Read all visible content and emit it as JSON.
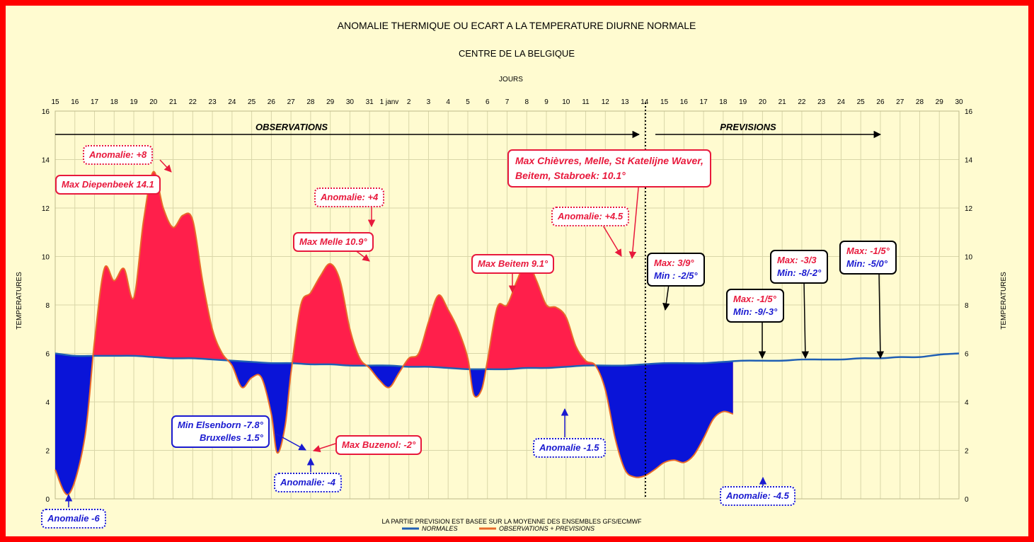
{
  "chart_data": {
    "type": "area",
    "title": "ANOMALIE THERMIQUE OU ECART A LA TEMPERATURE DIURNE NORMALE",
    "subtitle": "CENTRE DE LA BELGIQUE",
    "xlabel": "JOURS",
    "ylabel": "TEMPERATURES",
    "ylim": [
      0,
      16
    ],
    "yticks": [
      0,
      2,
      4,
      6,
      8,
      10,
      12,
      14,
      16
    ],
    "x_tick_labels": [
      "15",
      "16",
      "17",
      "18",
      "19",
      "20",
      "21",
      "22",
      "23",
      "24",
      "25",
      "26",
      "27",
      "28",
      "29",
      "30",
      "31",
      "1 janv",
      "2",
      "3",
      "4",
      "5",
      "6",
      "7",
      "8",
      "9",
      "10",
      "11",
      "12",
      "13",
      "14",
      "15",
      "16",
      "17",
      "18",
      "19",
      "20",
      "21",
      "22",
      "23",
      "24",
      "25",
      "26",
      "27",
      "28",
      "29",
      "30"
    ],
    "grid": true,
    "series": [
      {
        "name": "NORMALES",
        "color": "#1f5fb4",
        "points": [
          [
            0,
            6.0
          ],
          [
            1,
            5.9
          ],
          [
            2,
            5.9
          ],
          [
            3,
            5.9
          ],
          [
            4,
            5.9
          ],
          [
            5,
            5.85
          ],
          [
            6,
            5.8
          ],
          [
            7,
            5.8
          ],
          [
            8,
            5.75
          ],
          [
            9,
            5.7
          ],
          [
            10,
            5.65
          ],
          [
            11,
            5.6
          ],
          [
            12,
            5.6
          ],
          [
            13,
            5.55
          ],
          [
            14,
            5.55
          ],
          [
            15,
            5.5
          ],
          [
            16,
            5.5
          ],
          [
            17,
            5.5
          ],
          [
            18,
            5.45
          ],
          [
            19,
            5.45
          ],
          [
            20,
            5.4
          ],
          [
            21,
            5.35
          ],
          [
            22,
            5.35
          ],
          [
            23,
            5.35
          ],
          [
            24,
            5.4
          ],
          [
            25,
            5.4
          ],
          [
            26,
            5.45
          ],
          [
            27,
            5.5
          ],
          [
            28,
            5.5
          ],
          [
            29,
            5.5
          ],
          [
            30,
            5.55
          ],
          [
            31,
            5.6
          ],
          [
            32,
            5.6
          ],
          [
            33,
            5.6
          ],
          [
            34,
            5.65
          ],
          [
            35,
            5.7
          ],
          [
            36,
            5.7
          ],
          [
            37,
            5.7
          ],
          [
            38,
            5.75
          ],
          [
            39,
            5.75
          ],
          [
            40,
            5.75
          ],
          [
            41,
            5.8
          ],
          [
            42,
            5.8
          ],
          [
            43,
            5.85
          ],
          [
            44,
            5.85
          ],
          [
            45,
            5.95
          ],
          [
            46,
            6.0
          ]
        ]
      },
      {
        "name": "OBSERVATIONS + PREVISIONS",
        "color": "#e86a2a",
        "points": [
          [
            0,
            1.2
          ],
          [
            0.7,
            0.2
          ],
          [
            1.5,
            2.5
          ],
          [
            2,
            6.5
          ],
          [
            2.5,
            9.5
          ],
          [
            3,
            9.0
          ],
          [
            3.5,
            9.5
          ],
          [
            4,
            8.3
          ],
          [
            4.5,
            11.5
          ],
          [
            5,
            13.5
          ],
          [
            5.5,
            12.0
          ],
          [
            6,
            11.2
          ],
          [
            6.5,
            11.7
          ],
          [
            7,
            11.5
          ],
          [
            7.5,
            9.0
          ],
          [
            8,
            7.0
          ],
          [
            8.5,
            6.0
          ],
          [
            9,
            5.5
          ],
          [
            9.5,
            4.6
          ],
          [
            10,
            5.0
          ],
          [
            10.5,
            5.0
          ],
          [
            11,
            3.5
          ],
          [
            11.3,
            1.9
          ],
          [
            11.7,
            3.0
          ],
          [
            12,
            5.2
          ],
          [
            12.5,
            8.0
          ],
          [
            13,
            8.5
          ],
          [
            13.5,
            9.2
          ],
          [
            14,
            9.7
          ],
          [
            14.5,
            9.0
          ],
          [
            15,
            7.0
          ],
          [
            15.5,
            5.8
          ],
          [
            16,
            5.4
          ],
          [
            16.5,
            4.9
          ],
          [
            17,
            4.6
          ],
          [
            17.5,
            5.2
          ],
          [
            18,
            5.8
          ],
          [
            18.5,
            6.0
          ],
          [
            19,
            7.3
          ],
          [
            19.5,
            8.4
          ],
          [
            20,
            7.8
          ],
          [
            20.5,
            7.0
          ],
          [
            21,
            5.8
          ],
          [
            21.3,
            4.3
          ],
          [
            21.7,
            4.5
          ],
          [
            22,
            5.7
          ],
          [
            22.5,
            7.9
          ],
          [
            23,
            8.0
          ],
          [
            23.5,
            9.0
          ],
          [
            24,
            9.8
          ],
          [
            24.5,
            9.0
          ],
          [
            25,
            8.0
          ],
          [
            25.5,
            7.9
          ],
          [
            26,
            7.5
          ],
          [
            26.5,
            6.3
          ],
          [
            27,
            5.7
          ],
          [
            27.5,
            5.5
          ],
          [
            28,
            4.5
          ],
          [
            28.5,
            2.5
          ],
          [
            29,
            1.2
          ],
          [
            29.5,
            0.9
          ],
          [
            30,
            0.95
          ],
          [
            30.5,
            1.2
          ],
          [
            31,
            1.5
          ],
          [
            31.5,
            1.6
          ],
          [
            32,
            1.5
          ],
          [
            32.5,
            1.8
          ],
          [
            33,
            2.5
          ],
          [
            33.5,
            3.3
          ],
          [
            34,
            3.6
          ],
          [
            34.5,
            3.5
          ]
        ]
      }
    ],
    "section_labels": {
      "observations": "OBSERVATIONS",
      "previsions": "PREVISIONS"
    },
    "annotations": [
      "Anomalie: +8",
      "Max Diepenbeek 14.1",
      "Anomalie:  +4",
      "Max Melle 10.9°",
      "Max Beitem 9.1°",
      "Max  Chièvres, Melle, St Katelijne Waver,",
      "Beitem, Stabroek: 10.1°",
      "Anomalie: +4.5",
      "Min Elsenborn -7.8°",
      "Bruxelles -1.5°",
      "Max Buzenol: -2°",
      "Anomalie: -4",
      "Anomalie -1.5",
      "Anomalie -6",
      "Anomalie: -4.5"
    ],
    "forecast_boxes": [
      {
        "max": "Max: 3/9°",
        "min": "Min : -2/5°"
      },
      {
        "max": "Max: -1/5°",
        "min": "Min: -9/-3°"
      },
      {
        "max": "Max: -3/3",
        "min": "Min: -8/-2°"
      },
      {
        "max": "Max: -1/5°",
        "min": "Min: -5/0°"
      }
    ],
    "footnote": "LA PARTIE PREVISION EST BASEE SUR LA MOYENNE DES ENSEMBLES GFS/ECMWF",
    "legend": [
      {
        "name": "NORMALES",
        "color": "#1f5fb4"
      },
      {
        "name": "OBSERVATIONS + PREVISIONS",
        "color": "#e86a2a"
      }
    ],
    "legend_position": "bottom",
    "warm_fill": "#ff1f4b",
    "cold_fill": "#0a14d8"
  }
}
